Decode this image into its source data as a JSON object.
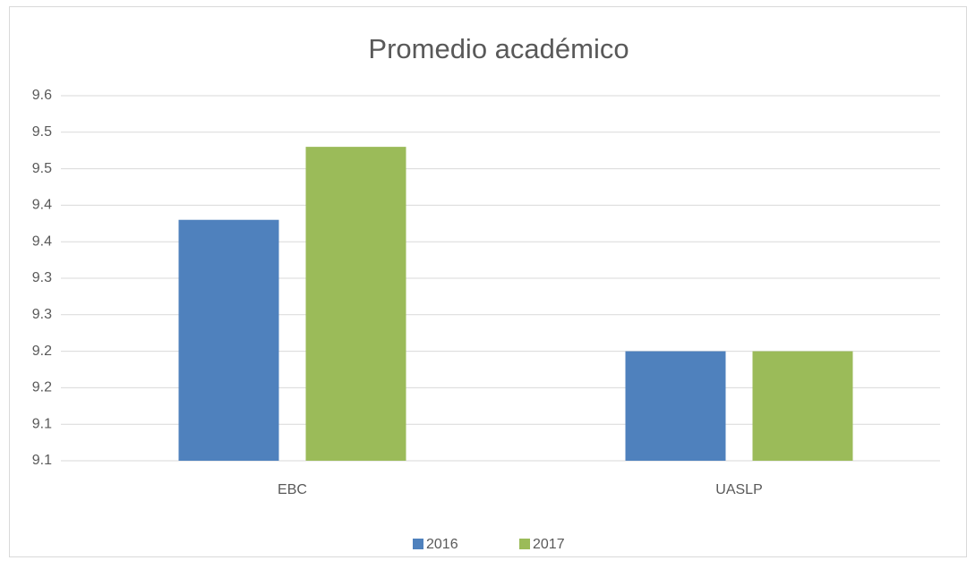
{
  "chart_data": {
    "type": "bar",
    "title": "Promedio académico",
    "categories": [
      "EBC",
      "UASLP"
    ],
    "series": [
      {
        "name": "2016",
        "color": "#4f81bd",
        "values": [
          9.38,
          9.2
        ]
      },
      {
        "name": "2017",
        "color": "#9bbb59",
        "values": [
          9.48,
          9.2
        ]
      }
    ],
    "ylim": [
      9.05,
      9.55
    ],
    "yticks": [
      {
        "value": 9.05,
        "label": "9.1"
      },
      {
        "value": 9.1,
        "label": "9.1"
      },
      {
        "value": 9.15,
        "label": "9.2"
      },
      {
        "value": 9.2,
        "label": "9.2"
      },
      {
        "value": 9.25,
        "label": "9.3"
      },
      {
        "value": 9.3,
        "label": "9.3"
      },
      {
        "value": 9.35,
        "label": "9.4"
      },
      {
        "value": 9.4,
        "label": "9.4"
      },
      {
        "value": 9.45,
        "label": "9.5"
      },
      {
        "value": 9.5,
        "label": "9.5"
      },
      {
        "value": 9.55,
        "label": "9.6"
      }
    ],
    "grid": true,
    "legend": "bottom"
  }
}
